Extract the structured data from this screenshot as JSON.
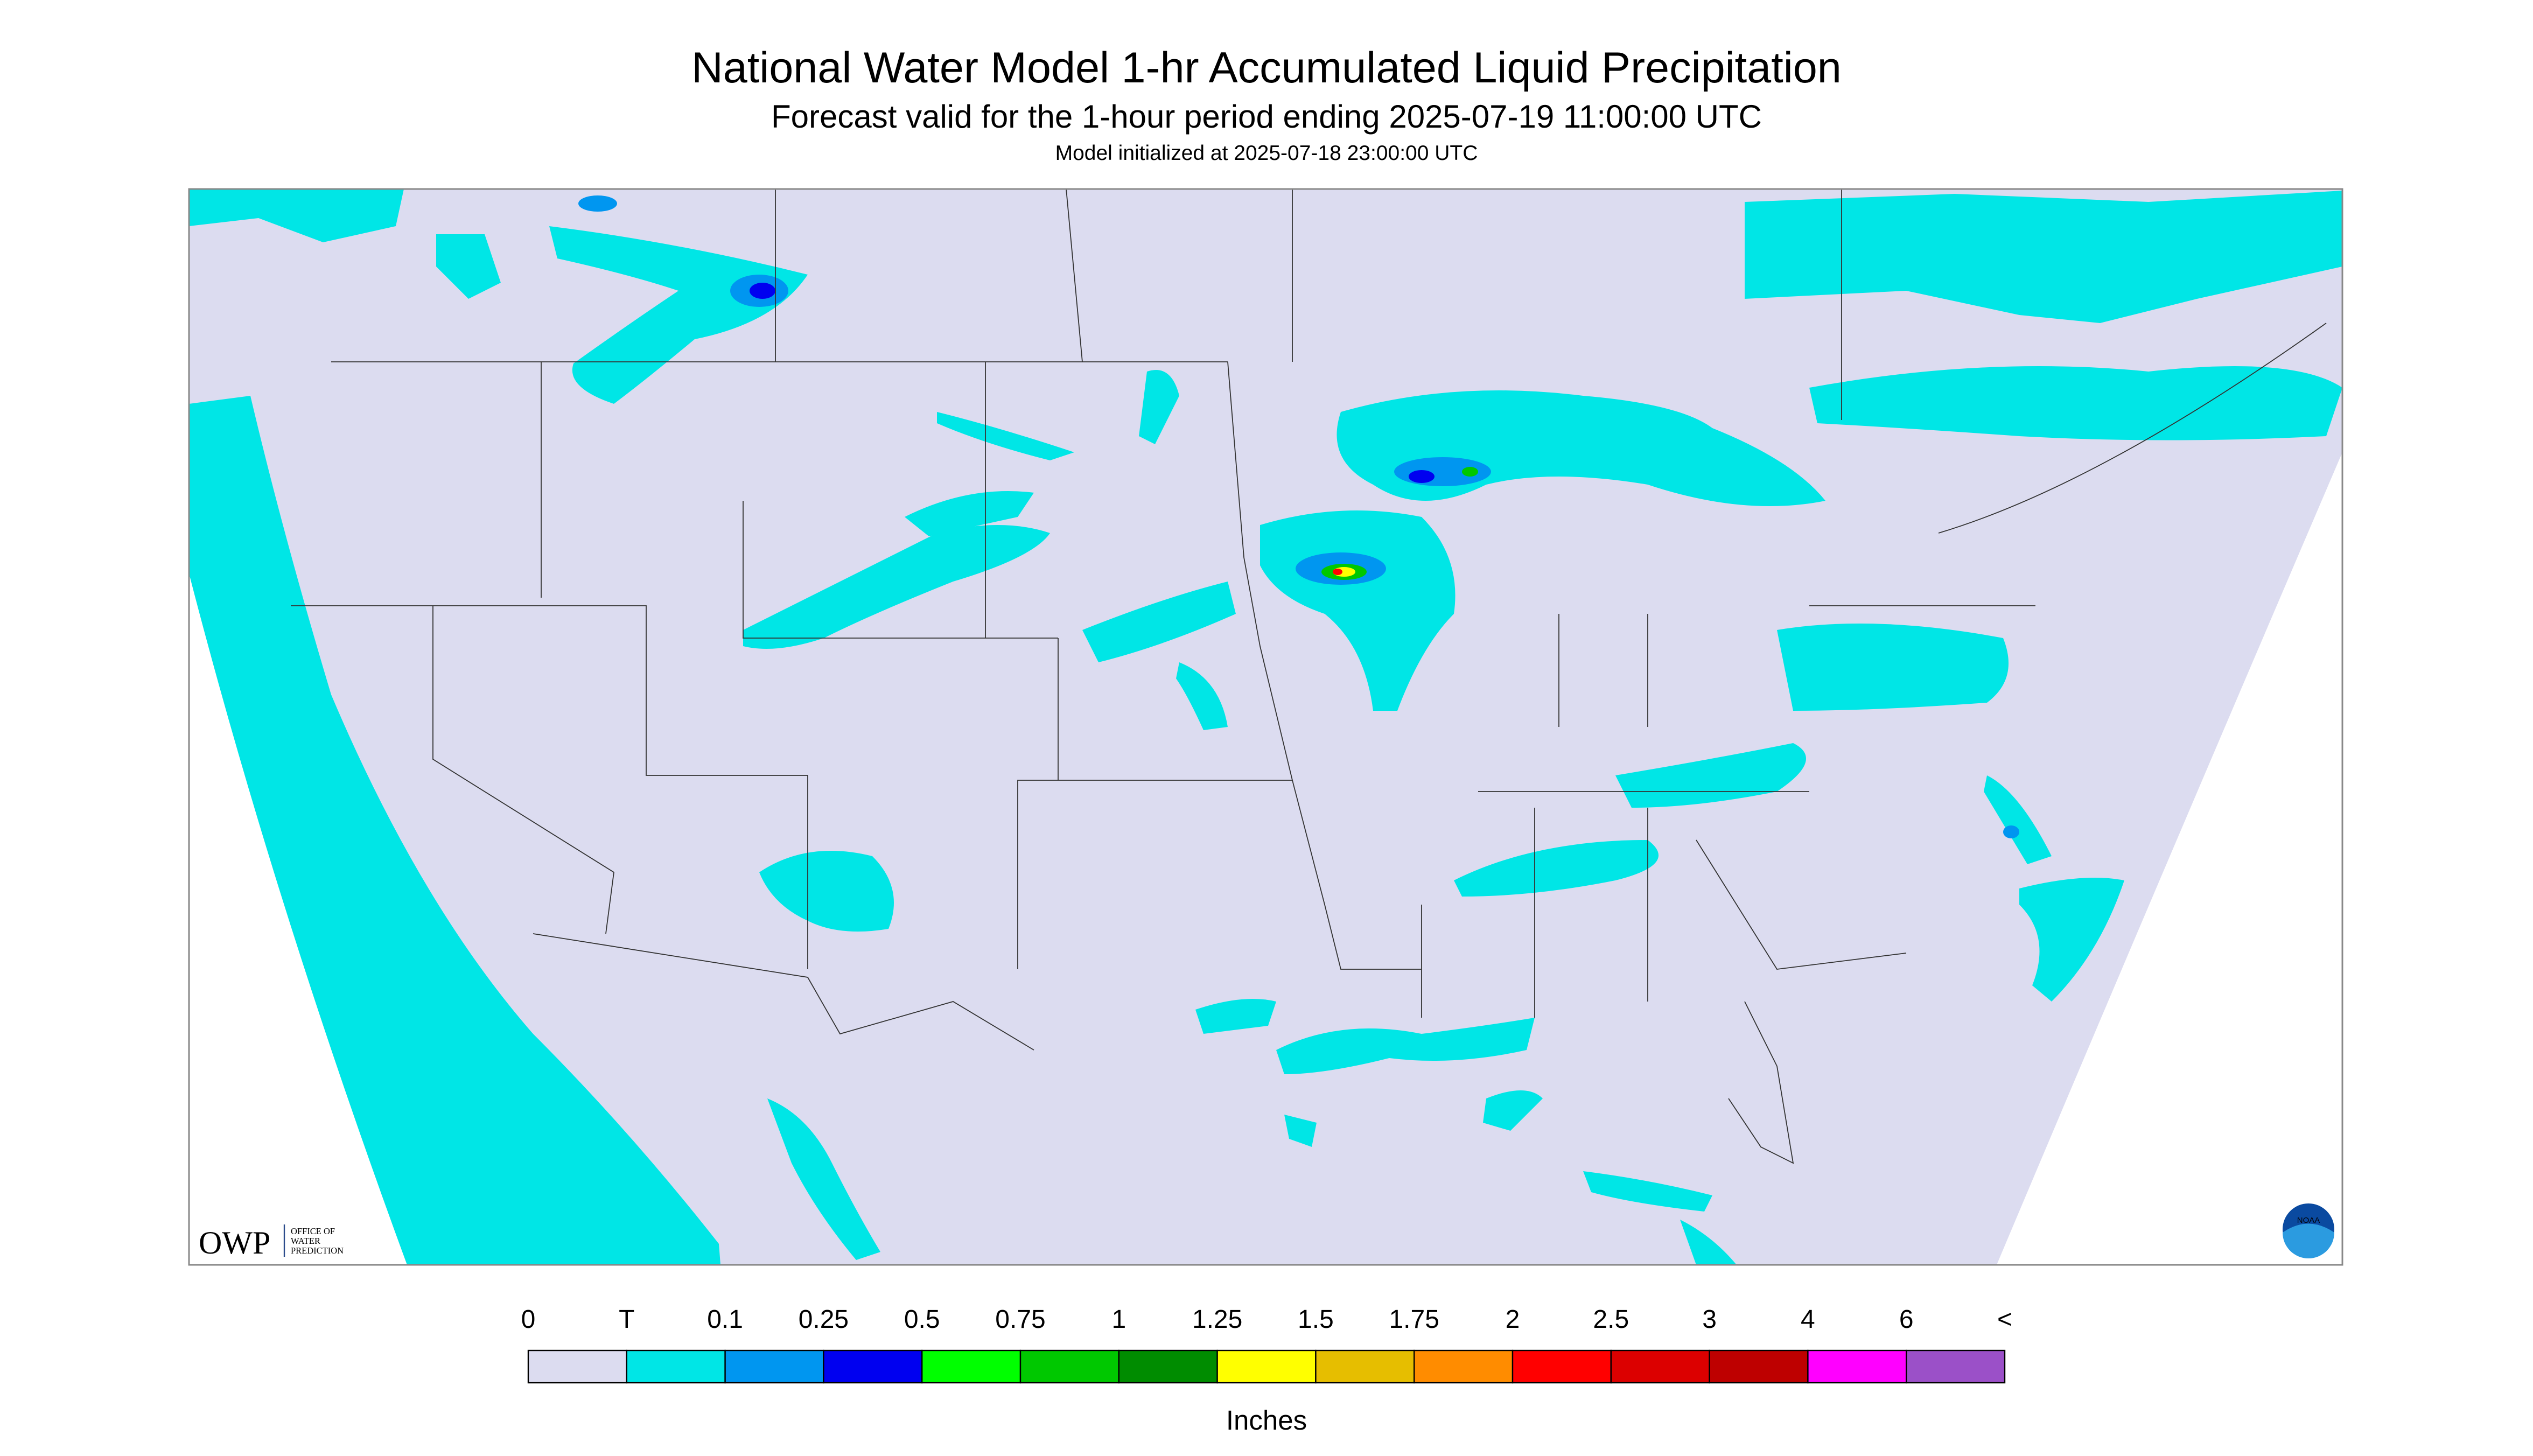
{
  "header": {
    "title": "National Water Model 1-hr Accumulated Liquid Precipitation",
    "subtitle": "Forecast valid for the 1-hour period ending 2025-07-19 11:00:00 UTC",
    "note": "Model initialized at 2025-07-18 23:00:00 UTC"
  },
  "logos": {
    "owp": "OWP",
    "owp_text": [
      "OFFICE OF",
      "WATER",
      "PREDICTION"
    ],
    "noaa": "NOAA"
  },
  "legend": {
    "labels": [
      "0",
      "T",
      "0.1",
      "0.25",
      "0.5",
      "0.75",
      "1",
      "1.25",
      "1.5",
      "1.75",
      "2",
      "2.5",
      "3",
      "4",
      "6",
      "<"
    ],
    "colors": [
      "#dcdcf0",
      "#00e6e6",
      "#0096f0",
      "#0000f0",
      "#00ff00",
      "#00c800",
      "#008c00",
      "#ffff00",
      "#e6be00",
      "#ff8c00",
      "#ff0000",
      "#dc0000",
      "#be0000",
      "#ff00ff",
      "#9b50c8"
    ],
    "unit": "Inches"
  }
}
